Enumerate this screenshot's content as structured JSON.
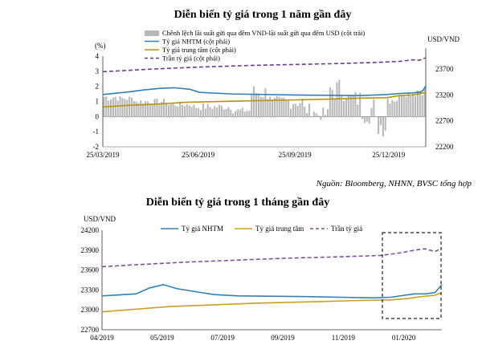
{
  "chart_data": [
    {
      "type": "bar+line",
      "title": "Diễn biến tỷ giá trong 1 năm gần đây",
      "left_axis_unit": "(%)",
      "right_axis_unit": "USD/VND",
      "left_ylim": [
        -2,
        4
      ],
      "left_ticks": [
        "-2",
        "-1",
        "0",
        "1",
        "2",
        "3",
        "4"
      ],
      "right_ylim": [
        22200,
        23950
      ],
      "right_ticks": [
        "22200",
        "22700",
        "23200",
        "23700"
      ],
      "x_ticks": [
        "25/03/2019",
        "25/06/2019",
        "25/09/2019",
        "25/12/2019"
      ],
      "legend": [
        "Chênh lệch lãi suất gửi qua đêm VND-lãi  suất gửi qua đêm USD (cột trái)",
        "Tỷ giá NHTM (cột phải)",
        "Tỷ giá trung tâm (cột phải)",
        "Trần tỷ giá (cột phải)"
      ],
      "colors": {
        "bars": "#b8b8b8",
        "nhtm": "#2f80b8",
        "central": "#b8930f",
        "ceiling": "#6a3d8e"
      },
      "note": "Nguồn: Bloomberg, NHNN, BVSC tổng hợp",
      "bars": [
        {
          "xRange": [
            0,
            0.05
          ],
          "min": 1.0,
          "max": 1.6
        },
        {
          "xRange": [
            0.05,
            0.1
          ],
          "min": 1.0,
          "max": 1.4
        },
        {
          "xRange": [
            0.1,
            0.2
          ],
          "min": 0.8,
          "max": 1.2
        },
        {
          "xRange": [
            0.2,
            0.28
          ],
          "min": 0.6,
          "max": 1.0
        },
        {
          "xRange": [
            0.28,
            0.4
          ],
          "min": 0.4,
          "max": 0.9
        },
        {
          "xRange": [
            0.4,
            0.46
          ],
          "min": 0.2,
          "max": 0.6
        },
        {
          "xRange": [
            0.46,
            0.52
          ],
          "min": 1.0,
          "max": 2.2
        },
        {
          "xRange": [
            0.52,
            0.56
          ],
          "min": 0.3,
          "max": 1.4
        },
        {
          "xRange": [
            0.56,
            0.62
          ],
          "min": 0.5,
          "max": 1.5
        },
        {
          "xRange": [
            0.62,
            0.66
          ],
          "min": 0.0,
          "max": 0.9
        },
        {
          "xRange": [
            0.66,
            0.7
          ],
          "min": -0.3,
          "max": 0.6
        },
        {
          "xRange": [
            0.7,
            0.76
          ],
          "min": 1.0,
          "max": 2.6
        },
        {
          "xRange": [
            0.76,
            0.8
          ],
          "min": 0.5,
          "max": 1.8
        },
        {
          "xRange": [
            0.8,
            0.84
          ],
          "min": -0.5,
          "max": 1.5
        },
        {
          "xRange": [
            0.84,
            0.88
          ],
          "min": -1.4,
          "max": 0.3
        },
        {
          "xRange": [
            0.88,
            0.92
          ],
          "min": 0.8,
          "max": 1.6
        },
        {
          "xRange": [
            0.92,
            0.97
          ],
          "min": 1.3,
          "max": 1.8
        },
        {
          "xRange": [
            0.97,
            1.0
          ],
          "min": 1.4,
          "max": 2.1
        }
      ],
      "series": [
        {
          "name": "Tỷ giá NHTM",
          "key": "nhtm",
          "points": [
            [
              0,
              23210
            ],
            [
              0.08,
              23260
            ],
            [
              0.13,
              23300
            ],
            [
              0.18,
              23330
            ],
            [
              0.22,
              23340
            ],
            [
              0.27,
              23310
            ],
            [
              0.3,
              23250
            ],
            [
              0.4,
              23220
            ],
            [
              0.6,
              23200
            ],
            [
              0.8,
              23190
            ],
            [
              0.84,
              23200
            ],
            [
              0.88,
              23210
            ],
            [
              0.92,
              23230
            ],
            [
              0.96,
              23240
            ],
            [
              0.985,
              23260
            ],
            [
              0.993,
              23300
            ],
            [
              1.0,
              23380
            ]
          ]
        },
        {
          "name": "Tỷ giá trung tâm",
          "key": "central",
          "points": [
            [
              0,
              22970
            ],
            [
              0.08,
              23000
            ],
            [
              0.18,
              23030
            ],
            [
              0.26,
              23060
            ],
            [
              0.4,
              23080
            ],
            [
              0.55,
              23100
            ],
            [
              0.7,
              23120
            ],
            [
              0.8,
              23140
            ],
            [
              0.88,
              23150
            ],
            [
              0.92,
              23190
            ],
            [
              0.96,
              23200
            ],
            [
              1.0,
              23250
            ]
          ]
        },
        {
          "name": "Trần tỷ giá",
          "key": "ceiling",
          "points": [
            [
              0,
              23650
            ],
            [
              0.15,
              23700
            ],
            [
              0.3,
              23740
            ],
            [
              0.45,
              23770
            ],
            [
              0.6,
              23790
            ],
            [
              0.75,
              23810
            ],
            [
              0.85,
              23830
            ],
            [
              0.92,
              23850
            ],
            [
              0.96,
              23880
            ],
            [
              0.98,
              23870
            ],
            [
              1.0,
              23920
            ]
          ]
        }
      ]
    },
    {
      "type": "line",
      "title": "Diễn biến tỷ giá trong 1 tháng gần đây",
      "ylabel": "USD/VND",
      "ylim": [
        22700,
        24200
      ],
      "y_ticks": [
        "22700",
        "23000",
        "23300",
        "23600",
        "23900",
        "24200"
      ],
      "x_ticks": [
        "04/2019",
        "05/2019",
        "07/2019",
        "09/2019",
        "11/2019",
        "01/2020"
      ],
      "legend_position": "top",
      "highlight_box": true,
      "colors": {
        "nhtm": "#2f80b8",
        "central": "#c8a020",
        "ceiling": "#7b4f9f"
      },
      "series": [
        {
          "name": "Tỷ giá NHTM",
          "key": "nhtm",
          "points": [
            [
              0,
              23210
            ],
            [
              0.1,
              23240
            ],
            [
              0.14,
              23330
            ],
            [
              0.18,
              23380
            ],
            [
              0.22,
              23320
            ],
            [
              0.28,
              23270
            ],
            [
              0.33,
              23230
            ],
            [
              0.4,
              23210
            ],
            [
              0.6,
              23200
            ],
            [
              0.7,
              23190
            ],
            [
              0.8,
              23180
            ],
            [
              0.85,
              23190
            ],
            [
              0.89,
              23220
            ],
            [
              0.92,
              23240
            ],
            [
              0.95,
              23240
            ],
            [
              0.98,
              23260
            ],
            [
              1.0,
              23380
            ]
          ]
        },
        {
          "name": "Tỷ giá trung tâm",
          "key": "central",
          "points": [
            [
              0,
              22970
            ],
            [
              0.1,
              23010
            ],
            [
              0.2,
              23050
            ],
            [
              0.3,
              23070
            ],
            [
              0.45,
              23100
            ],
            [
              0.6,
              23120
            ],
            [
              0.75,
              23140
            ],
            [
              0.85,
              23150
            ],
            [
              0.9,
              23170
            ],
            [
              0.94,
              23200
            ],
            [
              0.98,
              23220
            ],
            [
              1.0,
              23260
            ]
          ]
        },
        {
          "name": "Trần tỷ giá",
          "key": "ceiling",
          "points": [
            [
              0,
              23650
            ],
            [
              0.1,
              23680
            ],
            [
              0.25,
              23720
            ],
            [
              0.4,
              23750
            ],
            [
              0.55,
              23780
            ],
            [
              0.7,
              23800
            ],
            [
              0.82,
              23820
            ],
            [
              0.88,
              23860
            ],
            [
              0.92,
              23900
            ],
            [
              0.95,
              23920
            ],
            [
              0.98,
              23880
            ],
            [
              1.0,
              23930
            ]
          ]
        }
      ]
    }
  ]
}
